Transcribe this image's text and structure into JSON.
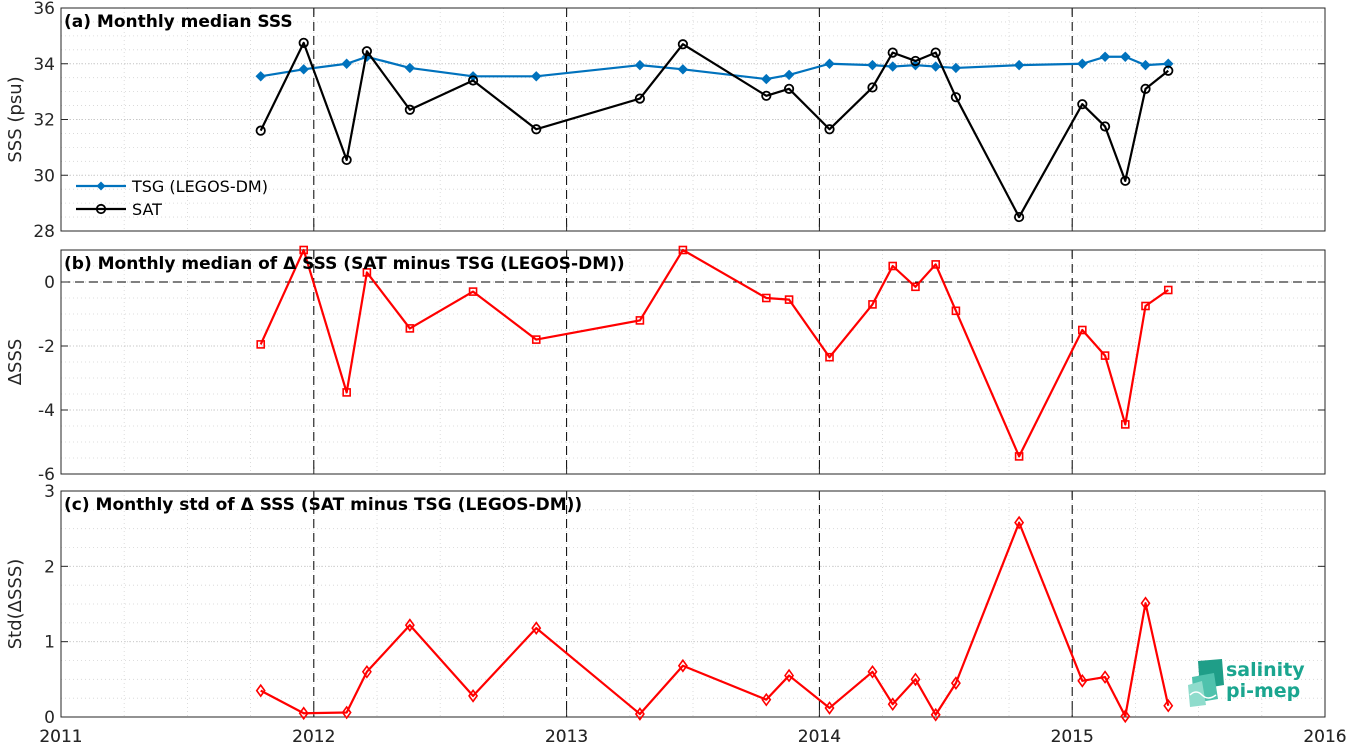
{
  "chart_data": [
    {
      "type": "line",
      "title": "(a) Monthly median SSS",
      "ylabel": "SSS (psu)",
      "ylim": [
        28,
        36
      ],
      "yticks": [
        28,
        30,
        32,
        34,
        36
      ],
      "xlim": [
        2011,
        2016
      ],
      "xticks": [
        2011,
        2012,
        2013,
        2014,
        2015,
        2016
      ],
      "grid": true,
      "legend_placement": "bottom-left",
      "series": [
        {
          "name": "TSG (LEGOS-DM)",
          "color": "#0072BD",
          "marker": "filled-diamond",
          "x": [
            2011.79,
            2011.96,
            2012.13,
            2012.21,
            2012.38,
            2012.63,
            2012.88,
            2013.29,
            2013.46,
            2013.79,
            2013.88,
            2014.04,
            2014.21,
            2014.29,
            2014.38,
            2014.46,
            2014.54,
            2014.79,
            2015.04,
            2015.13,
            2015.21,
            2015.29,
            2015.38
          ],
          "y": [
            33.55,
            33.8,
            34.0,
            34.25,
            33.85,
            33.55,
            33.55,
            33.95,
            33.8,
            33.45,
            33.6,
            34.0,
            33.95,
            33.9,
            33.95,
            33.9,
            33.85,
            33.95,
            34.0,
            34.25,
            34.25,
            33.95,
            34.0
          ]
        },
        {
          "name": "SAT",
          "color": "#000000",
          "marker": "open-circle",
          "x": [
            2011.79,
            2011.96,
            2012.13,
            2012.21,
            2012.38,
            2012.63,
            2012.88,
            2013.29,
            2013.46,
            2013.79,
            2013.88,
            2014.04,
            2014.21,
            2014.29,
            2014.38,
            2014.46,
            2014.54,
            2014.79,
            2015.04,
            2015.13,
            2015.21,
            2015.29,
            2015.38
          ],
          "y": [
            31.6,
            34.75,
            30.55,
            34.45,
            32.35,
            33.4,
            31.65,
            32.75,
            34.7,
            32.85,
            33.1,
            31.65,
            33.15,
            34.4,
            34.1,
            34.4,
            32.8,
            28.5,
            32.55,
            31.75,
            29.8,
            33.1,
            33.75
          ]
        }
      ]
    },
    {
      "type": "line",
      "title": "(b) Monthly median of Δ SSS (SAT minus TSG (LEGOS-DM))",
      "ylabel": "ΔSSS",
      "ylim": [
        -6,
        1
      ],
      "yticks": [
        -6,
        -4,
        -2,
        0
      ],
      "xlim": [
        2011,
        2016
      ],
      "grid": true,
      "zero_line": true,
      "series": [
        {
          "color": "#FF0000",
          "marker": "open-square",
          "x": [
            2011.79,
            2011.96,
            2012.13,
            2012.21,
            2012.38,
            2012.63,
            2012.88,
            2013.29,
            2013.46,
            2013.79,
            2013.88,
            2014.04,
            2014.21,
            2014.29,
            2014.38,
            2014.46,
            2014.54,
            2014.79,
            2015.04,
            2015.13,
            2015.21,
            2015.29,
            2015.38
          ],
          "y": [
            -1.95,
            1.0,
            -3.45,
            0.3,
            -1.45,
            -0.3,
            -1.8,
            -1.2,
            1.0,
            -0.5,
            -0.55,
            -2.35,
            -0.7,
            0.5,
            -0.15,
            0.55,
            -0.9,
            -5.45,
            -1.5,
            -2.3,
            -4.45,
            -0.75,
            -0.25
          ]
        }
      ]
    },
    {
      "type": "line",
      "title": "(c) Monthly std of Δ SSS (SAT minus TSG (LEGOS-DM))",
      "ylabel": "Std(ΔSSS)",
      "ylim": [
        0,
        3
      ],
      "yticks": [
        0,
        1,
        2,
        3
      ],
      "xlim": [
        2011,
        2016
      ],
      "xticks": [
        2011,
        2012,
        2013,
        2014,
        2015,
        2016
      ],
      "grid": true,
      "series": [
        {
          "color": "#FF0000",
          "marker": "open-diamond",
          "x": [
            2011.79,
            2011.96,
            2012.13,
            2012.21,
            2012.38,
            2012.63,
            2012.88,
            2013.29,
            2013.46,
            2013.79,
            2013.88,
            2014.04,
            2014.21,
            2014.29,
            2014.38,
            2014.46,
            2014.54,
            2014.79,
            2015.04,
            2015.13,
            2015.21,
            2015.29,
            2015.38
          ],
          "y": [
            0.35,
            0.05,
            0.06,
            0.6,
            1.22,
            0.28,
            1.18,
            0.04,
            0.68,
            0.23,
            0.55,
            0.12,
            0.6,
            0.17,
            0.5,
            0.03,
            0.45,
            2.58,
            0.48,
            0.53,
            0.01,
            1.51,
            0.15
          ]
        }
      ]
    }
  ],
  "logo": {
    "line1": "salinity",
    "line2": "pi-mep"
  }
}
